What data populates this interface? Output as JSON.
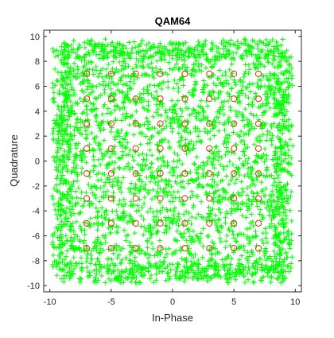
{
  "chart_data": {
    "type": "scatter",
    "title": "QAM64",
    "xlabel": "In-Phase",
    "ylabel": "Quadrature",
    "xlim": [
      -10.5,
      10.5
    ],
    "ylim": [
      -10.5,
      10.5
    ],
    "xticks": [
      -10,
      -5,
      0,
      5,
      10
    ],
    "yticks": [
      -10,
      -8,
      -6,
      -4,
      -2,
      0,
      2,
      4,
      6,
      8,
      10
    ],
    "grid": false,
    "legend": "none",
    "series": [
      {
        "marker": "plus",
        "color": "#00ff00",
        "distribution": "received symbols scattered around each ideal point",
        "extent": [
          -9.5,
          9.5
        ]
      },
      {
        "marker": "circle",
        "color": "#d94020",
        "x_levels": [
          -7,
          -5,
          -3,
          -1,
          1,
          3,
          5,
          7
        ],
        "y_levels": [
          -7,
          -5,
          -3,
          -1,
          1,
          3,
          5,
          7
        ]
      }
    ]
  }
}
